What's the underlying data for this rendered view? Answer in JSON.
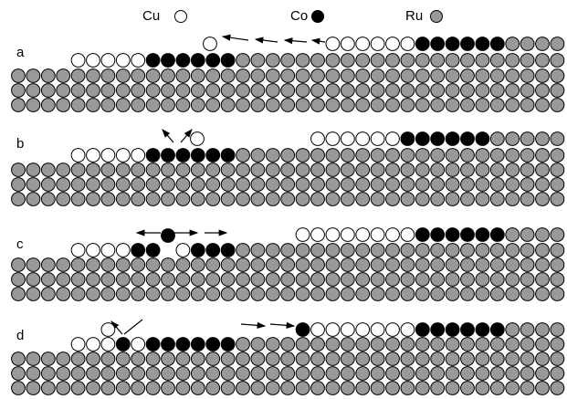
{
  "legend": [
    {
      "label": "Cu"
    },
    {
      "label": "Co"
    },
    {
      "label": "Ru"
    }
  ],
  "panels": [
    {
      "label": "a"
    },
    {
      "label": "b"
    },
    {
      "label": "c"
    },
    {
      "label": "d"
    }
  ]
}
